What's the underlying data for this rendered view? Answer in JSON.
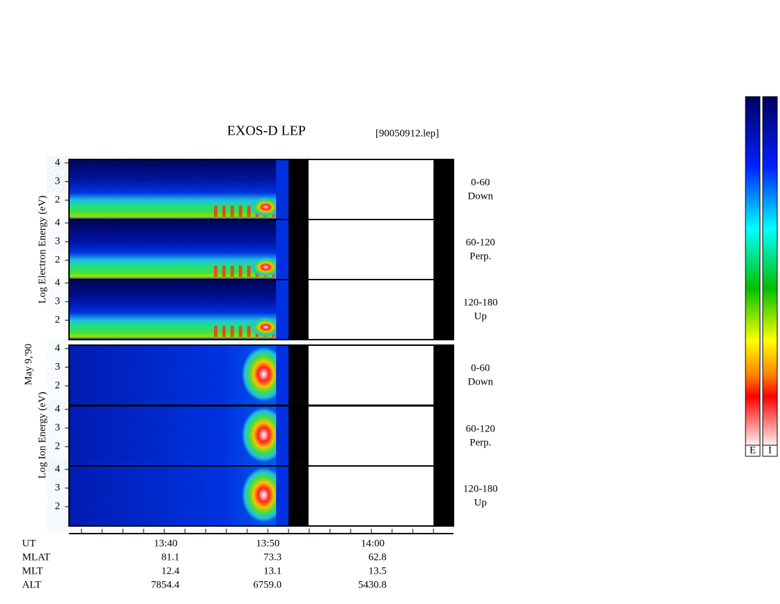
{
  "title": "EXOS-D LEP",
  "file": "[90050912.lep]",
  "date": "May 9,'90",
  "energy_ticks": [
    "4",
    "3",
    "2"
  ],
  "groups": [
    {
      "label": "Log Electron Energy (eV)",
      "panels": [
        {
          "range": "0-60",
          "dir": "Down"
        },
        {
          "range": "60-120",
          "dir": "Perp."
        },
        {
          "range": "120-180",
          "dir": "Up"
        }
      ]
    },
    {
      "label": "Log Ion Energy (eV)",
      "panels": [
        {
          "range": "0-60",
          "dir": "Down"
        },
        {
          "range": "60-120",
          "dir": "Perp."
        },
        {
          "range": "120-180",
          "dir": "Up"
        }
      ]
    }
  ],
  "ephemeris": [
    {
      "name": "UT",
      "values": [
        "13:40",
        "13:50",
        "14:00"
      ]
    },
    {
      "name": "MLAT",
      "values": [
        "81.1",
        "73.3",
        "62.8"
      ]
    },
    {
      "name": "MLT",
      "values": [
        "12.4",
        "13.1",
        "13.5"
      ]
    },
    {
      "name": "ALT",
      "values": [
        "7854.4",
        "6759.0",
        "5430.8"
      ]
    }
  ],
  "colorbars": [
    "E",
    "I"
  ]
}
